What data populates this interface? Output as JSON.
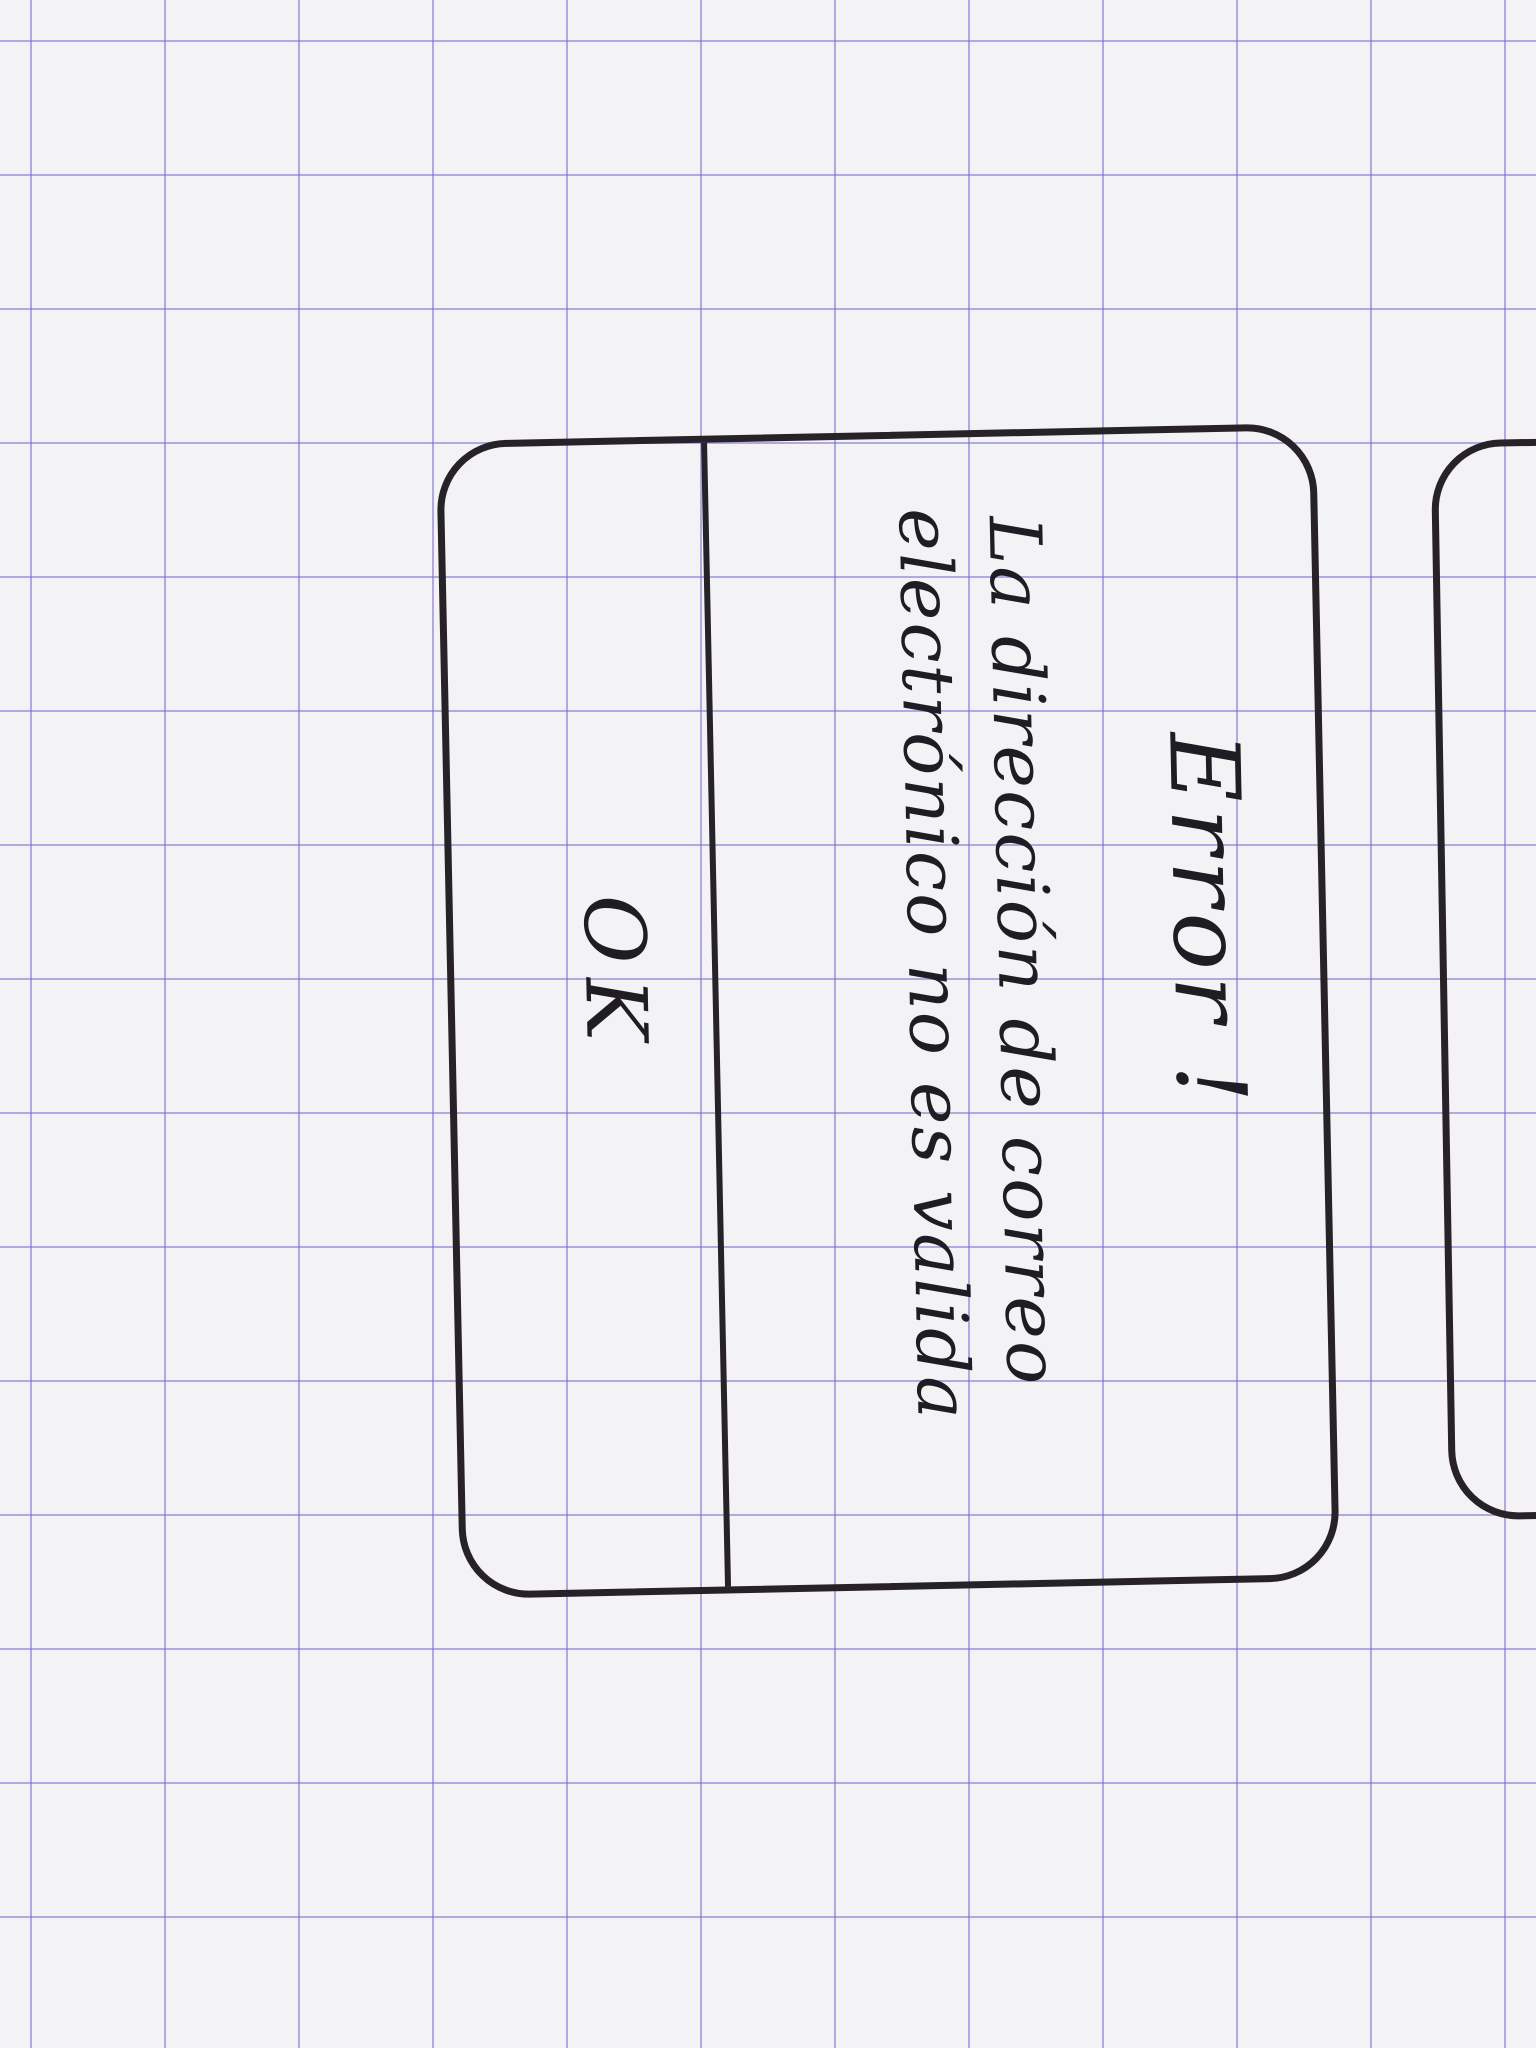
{
  "dialog": {
    "title": "Error !",
    "message_lines": [
      "La dirección de correo",
      "electrónico no es valida"
    ],
    "ok_label": "OK"
  },
  "colors": {
    "ink": "#262228",
    "grid": "#786ed2",
    "paper": "#f3f2f4"
  }
}
